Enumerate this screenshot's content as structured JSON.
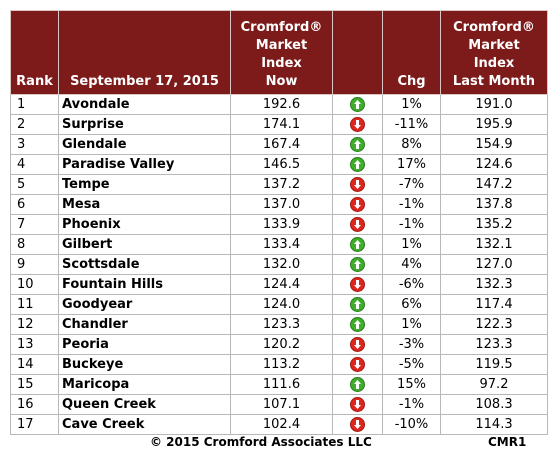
{
  "table": {
    "header": [
      "Rank",
      "September 17, 2015",
      "Cromford®\nMarket\nIndex\nNow",
      "Chg",
      "Cromford®\nMarket\nIndex\nLast Month"
    ],
    "rows": [
      [
        "1",
        "Avondale",
        "192.6",
        "1%",
        "191.0"
      ],
      [
        "2",
        "Surprise",
        "174.1",
        "-11%",
        "195.9"
      ],
      [
        "3",
        "Glendale",
        "167.4",
        "8%",
        "154.9"
      ],
      [
        "4",
        "Paradise Valley",
        "146.5",
        "17%",
        "124.6"
      ],
      [
        "5",
        "Tempe",
        "137.2",
        "-7%",
        "147.2"
      ],
      [
        "6",
        "Mesa",
        "137.0",
        "-1%",
        "137.8"
      ],
      [
        "7",
        "Phoenix",
        "133.9",
        "-1%",
        "135.2"
      ],
      [
        "8",
        "Gilbert",
        "133.4",
        "1%",
        "132.1"
      ],
      [
        "9",
        "Scottsdale",
        "132.0",
        "4%",
        "127.0"
      ],
      [
        "10",
        "Fountain Hills",
        "124.4",
        "-6%",
        "132.3"
      ],
      [
        "11",
        "Goodyear",
        "124.0",
        "6%",
        "117.4"
      ],
      [
        "12",
        "Chandler",
        "123.3",
        "1%",
        "122.3"
      ],
      [
        "13",
        "Peoria",
        "120.2",
        "-3%",
        "123.3"
      ],
      [
        "14",
        "Buckeye",
        "113.2",
        "-5%",
        "119.5"
      ],
      [
        "15",
        "Maricopa",
        "111.6",
        "15%",
        "97.2"
      ],
      [
        "16",
        "Queen Creek",
        "107.1",
        "-1%",
        "108.3"
      ],
      [
        "17",
        "Cave Creek",
        "102.4",
        "-10%",
        "114.3"
      ]
    ]
  },
  "footer": {
    "copyright": "© 2015 Cromford Associates LLC",
    "code": "CMR1"
  }
}
